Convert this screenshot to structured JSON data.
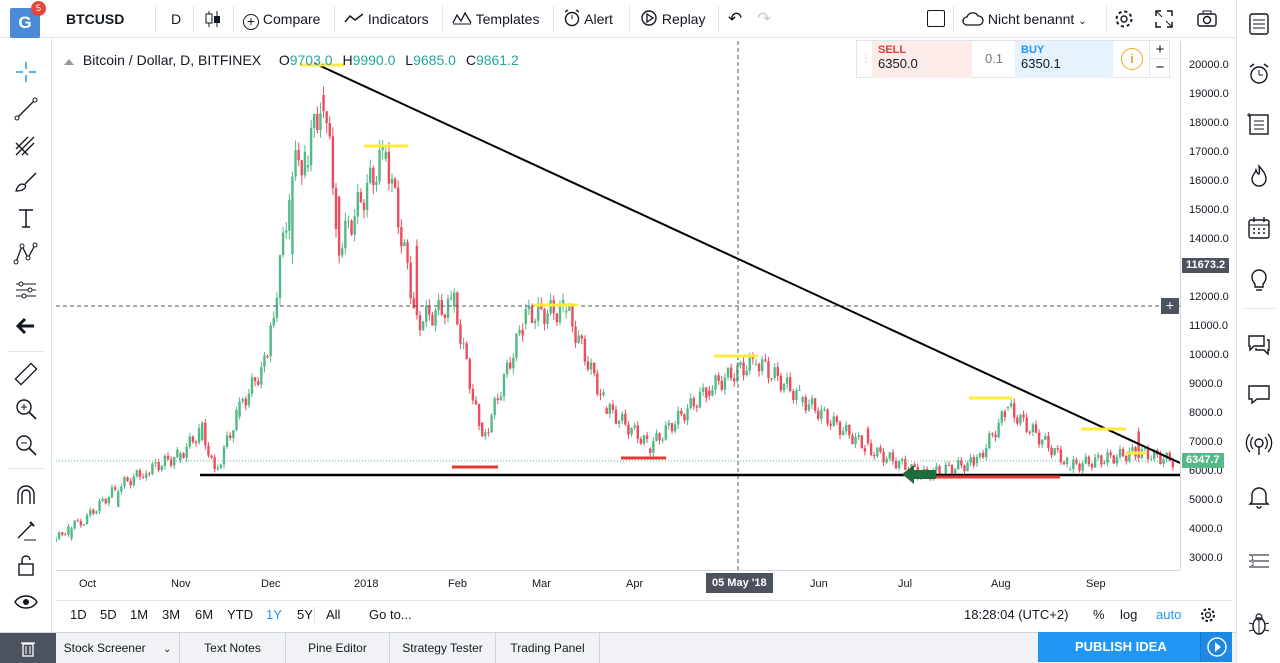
{
  "app": {
    "logo_letter": "G",
    "notification_count": "5"
  },
  "toolbar": {
    "symbol": "BTCUSD",
    "interval": "D",
    "compare_label": "Compare",
    "indicators_label": "Indicators",
    "templates_label": "Templates",
    "alert_label": "Alert",
    "replay_label": "Replay",
    "layout_name": "Nicht benannt"
  },
  "legend": {
    "title": "Bitcoin / Dollar, D, BITFINEX",
    "o_label": "O",
    "o_value": "9703.0",
    "h_label": "H",
    "h_value": "9990.0",
    "l_label": "L",
    "l_value": "9685.0",
    "c_label": "C",
    "c_value": "9861.2"
  },
  "trade": {
    "sell_label": "SELL",
    "sell_price": "6350.0",
    "spread": "0.1",
    "buy_label": "BUY",
    "buy_price": "6350.1"
  },
  "price_axis": {
    "ticks": [
      "20000.0",
      "19000.0",
      "18000.0",
      "17000.0",
      "16000.0",
      "15000.0",
      "14000.0",
      "13000.0",
      "12000.0",
      "11000.0",
      "10000.0",
      "9000.0",
      "8000.0",
      "7000.0",
      "6000.0",
      "5000.0",
      "4000.0",
      "3000.0"
    ],
    "crosshair_price": "11673.2",
    "last_price": "6347.7"
  },
  "time_axis": {
    "ticks": [
      "Oct",
      "Nov",
      "Dec",
      "2018",
      "Feb",
      "Mar",
      "Apr",
      "May",
      "Jun",
      "Jul",
      "Aug",
      "Sep"
    ],
    "crosshair_date": "05 May '18"
  },
  "range_bar": {
    "ranges": [
      "1D",
      "5D",
      "1M",
      "3M",
      "6M",
      "YTD",
      "1Y",
      "5Y",
      "All"
    ],
    "active_range": "1Y",
    "goto_label": "Go to...",
    "clock": "18:28:04 (UTC+2)",
    "percent_label": "%",
    "log_label": "log",
    "auto_label": "auto"
  },
  "bottom_tabs": [
    "Stock Screener",
    "Text Notes",
    "Pine Editor",
    "Strategy Tester",
    "Trading Panel"
  ],
  "publish_label": "PUBLISH IDEA",
  "colors": {
    "up": "#53b987",
    "down": "#eb4d5c",
    "accent": "#2196f3",
    "trendline": "#000000",
    "resistance_marker": "#ffeb3b",
    "support_marker": "#e53935",
    "last_price_bg": "#53b987",
    "crosshair_bg": "#4c525e"
  },
  "chart_data": {
    "type": "candlestick",
    "series": [
      {
        "name": "BTCUSD",
        "ohlc_approx": [
          [
            "2017-09-22",
            3600,
            3800,
            3500,
            3700
          ],
          [
            "2017-09-27",
            3700,
            4200,
            3650,
            4150
          ],
          [
            "2017-10-01",
            4200,
            4400,
            4100,
            4350
          ],
          [
            "2017-10-12",
            4800,
            5600,
            4750,
            5500
          ],
          [
            "2017-10-21",
            5800,
            6100,
            5700,
            6050
          ],
          [
            "2017-11-01",
            6400,
            6700,
            6300,
            6600
          ],
          [
            "2017-11-08",
            7100,
            7700,
            7000,
            7500
          ],
          [
            "2017-11-12",
            6500,
            6600,
            5500,
            5900
          ],
          [
            "2017-11-20",
            7900,
            8300,
            7800,
            8200
          ],
          [
            "2017-11-29",
            10000,
            11400,
            9000,
            9900
          ],
          [
            "2017-12-07",
            13500,
            16500,
            13300,
            16400
          ],
          [
            "2017-12-12",
            16500,
            17400,
            16200,
            17100
          ],
          [
            "2017-12-17",
            19000,
            19900,
            18900,
            19100
          ],
          [
            "2017-12-22",
            15500,
            15800,
            11000,
            13800
          ],
          [
            "2018-01-06",
            16800,
            17200,
            16000,
            17100
          ],
          [
            "2018-01-16",
            13800,
            13900,
            11000,
            11200
          ],
          [
            "2018-01-28",
            11700,
            12000,
            11400,
            11800
          ],
          [
            "2018-02-06",
            7700,
            7900,
            6000,
            7000
          ],
          [
            "2018-02-20",
            11100,
            11800,
            10900,
            11400
          ],
          [
            "2018-03-05",
            11500,
            11700,
            11300,
            11600
          ],
          [
            "2018-03-18",
            8200,
            8300,
            7400,
            8200
          ],
          [
            "2018-04-01",
            6800,
            7000,
            6500,
            6900
          ],
          [
            "2018-04-20",
            8800,
            9000,
            8500,
            8900
          ],
          [
            "2018-05-05",
            9700,
            9990,
            9685,
            9861
          ],
          [
            "2018-05-20",
            8400,
            8600,
            8300,
            8500
          ],
          [
            "2018-06-10",
            7500,
            7600,
            6700,
            6800
          ],
          [
            "2018-06-28",
            5900,
            6000,
            5800,
            5900
          ],
          [
            "2018-07-15",
            6300,
            6400,
            6200,
            6350
          ],
          [
            "2018-07-25",
            8200,
            8500,
            8100,
            8200
          ],
          [
            "2018-08-14",
            6100,
            6200,
            5900,
            6200
          ],
          [
            "2018-09-05",
            7400,
            7400,
            6600,
            6700
          ],
          [
            "2018-09-17",
            6350,
            6500,
            6300,
            6348
          ]
        ]
      }
    ],
    "ylim": [
      2500,
      20400
    ],
    "log_scale": false,
    "annotations": {
      "trendline": [
        [
          "2017-12-17",
          20000
        ],
        [
          "2018-09-24",
          6450
        ]
      ],
      "support_line": [
        [
          "2017-11-12",
          5800
        ],
        [
          "2018-09-24",
          5800
        ]
      ]
    }
  }
}
